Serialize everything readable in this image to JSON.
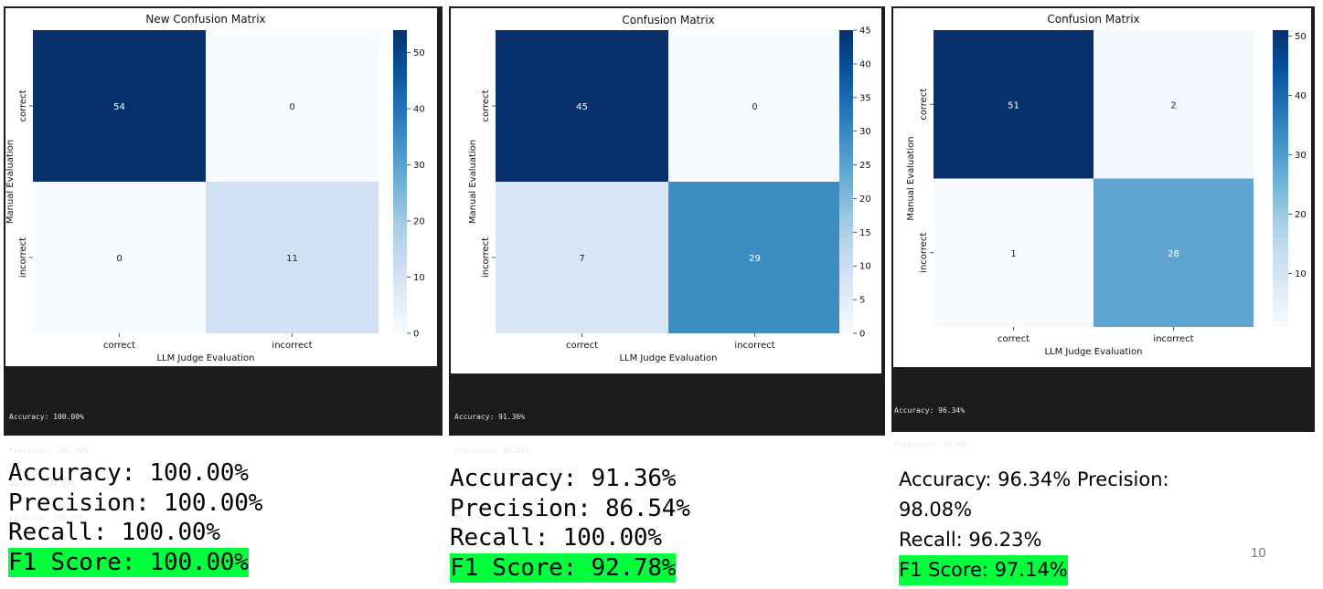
{
  "chart_data": [
    {
      "type": "heatmap",
      "title": "New Confusion Matrix",
      "xlabel": "LLM Judge Evaluation",
      "ylabel": "Manual Evaluation",
      "x_categories": [
        "correct",
        "incorrect"
      ],
      "y_categories": [
        "correct",
        "incorrect"
      ],
      "values": [
        [
          54,
          0
        ],
        [
          0,
          11
        ]
      ],
      "colorbar": {
        "min": 0,
        "max": 54,
        "ticks": [
          0,
          10,
          20,
          30,
          40,
          50
        ]
      },
      "colormap": "Blues"
    },
    {
      "type": "heatmap",
      "title": "Confusion Matrix",
      "xlabel": "LLM Judge Evaluation",
      "ylabel": "Manual Evaluation",
      "x_categories": [
        "correct",
        "incorrect"
      ],
      "y_categories": [
        "correct",
        "incorrect"
      ],
      "values": [
        [
          45,
          0
        ],
        [
          7,
          29
        ]
      ],
      "colorbar": {
        "min": 0,
        "max": 45,
        "ticks": [
          0,
          5,
          10,
          15,
          20,
          25,
          30,
          35,
          40,
          45
        ]
      },
      "colormap": "Blues"
    },
    {
      "type": "heatmap",
      "title": "Confusion Matrix",
      "xlabel": "LLM Judge Evaluation",
      "ylabel": "Manual Evaluation",
      "x_categories": [
        "correct",
        "incorrect"
      ],
      "y_categories": [
        "correct",
        "incorrect"
      ],
      "values": [
        [
          51,
          2
        ],
        [
          1,
          28
        ]
      ],
      "colorbar": {
        "min": 1,
        "max": 51,
        "ticks": [
          10,
          20,
          30,
          40,
          50
        ]
      },
      "colormap": "Blues"
    }
  ],
  "consoles": [
    [
      "Accuracy: 100.00%",
      "Precision: 100.00%",
      "Recall: 100.00%",
      "F1 Score: 100.00%"
    ],
    [
      "Accuracy: 91.36%",
      "Precision: 86.54%",
      "Recall: 100.00%",
      "F1 Score: 92.78%"
    ],
    [
      "Accuracy: 96.34%",
      "Precision: 98.08%",
      "Recall: 96.23%",
      "F1 Score: 97.14%"
    ]
  ],
  "metrics": [
    {
      "accuracy": "Accuracy: 100.00%",
      "precision": "Precision: 100.00%",
      "recall": "Recall: 100.00%",
      "f1": "F1 Score: 100.00%"
    },
    {
      "accuracy": "Accuracy: 91.36%",
      "precision": "Precision: 86.54%",
      "recall": "Recall: 100.00%",
      "f1": "F1 Score: 92.78%"
    },
    {
      "accuracy_precision_line1": "Accuracy: 96.34% Precision:",
      "precision_line2": "98.08%",
      "recall": "Recall: 96.23%",
      "f1": "F1 Score: 97.14%"
    }
  ],
  "highlight_color": "#00ff3c",
  "slide_number": "10"
}
